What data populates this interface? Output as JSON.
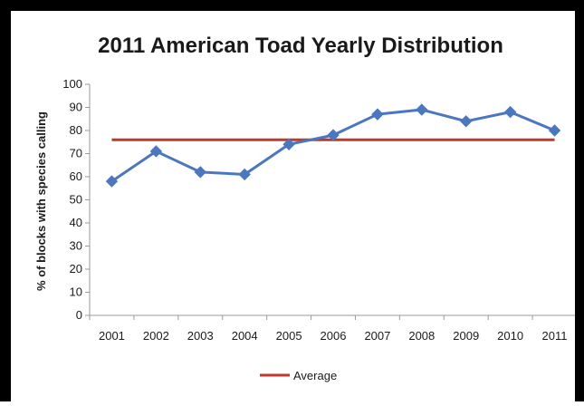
{
  "chart_data": {
    "type": "line",
    "title": "2011 American Toad Yearly Distribution",
    "xlabel": "",
    "ylabel": "% of blocks with species calling",
    "ylim": [
      0,
      100
    ],
    "yticks": [
      0,
      10,
      20,
      30,
      40,
      50,
      60,
      70,
      80,
      90,
      100
    ],
    "categories": [
      "2001",
      "2002",
      "2003",
      "2004",
      "2005",
      "2006",
      "2007",
      "2008",
      "2009",
      "2010",
      "2011"
    ],
    "series": [
      {
        "values": [
          58,
          71,
          62,
          61,
          74,
          78,
          87,
          89,
          84,
          88,
          80
        ],
        "color": "#4a77c0",
        "marker": "diamond"
      },
      {
        "name": "Average",
        "values": [
          76,
          76,
          76,
          76,
          76,
          76,
          76,
          76,
          76,
          76,
          76
        ],
        "color": "#c0392b"
      }
    ],
    "legend": {
      "placement": "bottom",
      "entries": [
        "Average"
      ]
    },
    "grid": false
  }
}
